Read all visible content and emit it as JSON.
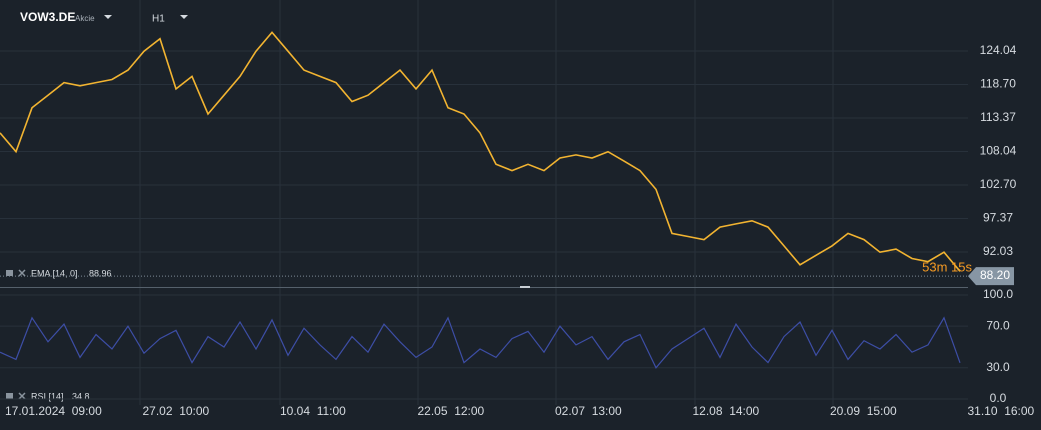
{
  "header": {
    "symbol": "VOW3.DE",
    "kind": "Akcie",
    "timeframe": "H1"
  },
  "time_labels": [
    "17.01.2024  09:00",
    "27.02  10:00",
    "10.04  11:00",
    "22.05  12:00",
    "02.07  13:00",
    "12.08  14:00",
    "20.09  15:00",
    "31.10  16:00"
  ],
  "chart_data": [
    {
      "type": "line",
      "series": [
        {
          "name": "EMA [14, 0]",
          "color": "#f2b431",
          "values": [
            111,
            108,
            115,
            117,
            119,
            118.5,
            119,
            119.5,
            121,
            124,
            126,
            118,
            120,
            114,
            117,
            120,
            124,
            127,
            124,
            121,
            120,
            119,
            116,
            117,
            119,
            121,
            118,
            121,
            115,
            114,
            111,
            106,
            105,
            106,
            105,
            107,
            107.5,
            107,
            108,
            106.5,
            105,
            102,
            95,
            94.5,
            94,
            96,
            96.5,
            97,
            96,
            93,
            90,
            91.5,
            93,
            95,
            94,
            92,
            92.5,
            91,
            90.5,
            92,
            88.96
          ]
        }
      ],
      "indicator_value": 88.96,
      "last_price": {
        "value": 88.2,
        "label": "88.20"
      },
      "countdown": "53m 15s",
      "ylim": [
        86.46,
        132.16
      ],
      "yticks": [
        124.04,
        {
          "value": 118.7,
          "label": "118.70"
        },
        113.37,
        108.04,
        {
          "value": 102.7,
          "label": "102.70"
        },
        97.37,
        92.03
      ]
    },
    {
      "type": "line",
      "series": [
        {
          "name": "RSI [14]",
          "color": "#3d4ea6",
          "values": [
            45,
            38,
            78,
            55,
            72,
            40,
            62,
            48,
            70,
            44,
            58,
            66,
            35,
            60,
            50,
            74,
            48,
            76,
            42,
            68,
            52,
            38,
            60,
            45,
            72,
            55,
            40,
            50,
            78,
            35,
            48,
            40,
            58,
            65,
            45,
            70,
            52,
            60,
            38,
            55,
            62,
            30,
            48,
            58,
            68,
            40,
            72,
            50,
            35,
            60,
            74,
            42,
            66,
            38,
            56,
            48,
            62,
            45,
            52,
            78,
            34.8
          ]
        }
      ],
      "indicator_value": 34.8,
      "ylim": [
        -5.8,
        106.7
      ],
      "yticks": [
        {
          "value": 100,
          "label": "100.0"
        },
        {
          "value": 70,
          "label": "70.0"
        },
        {
          "value": 30,
          "label": "30.0"
        },
        {
          "value": 0,
          "label": "0.0"
        }
      ]
    }
  ]
}
